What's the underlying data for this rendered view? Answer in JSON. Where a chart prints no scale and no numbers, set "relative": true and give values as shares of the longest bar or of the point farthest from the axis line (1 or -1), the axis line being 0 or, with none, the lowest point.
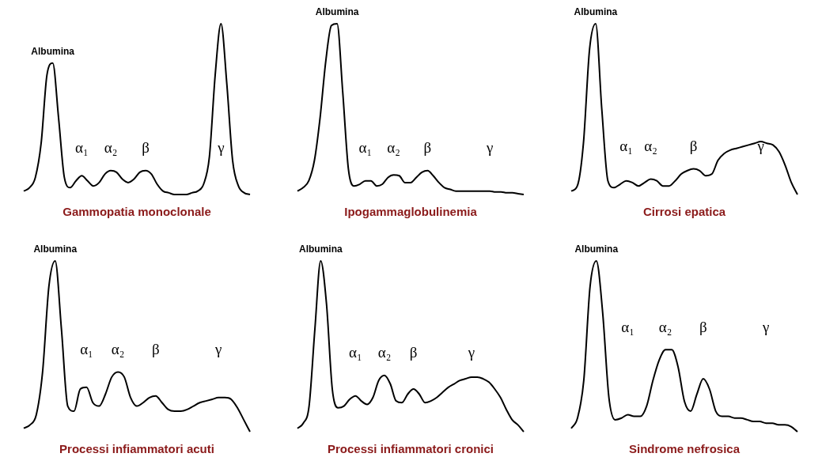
{
  "chart_data": [
    {
      "type": "line",
      "title": "Gammopatia monoclonale",
      "relative": true,
      "color": "#000000",
      "categories": [
        null,
        null,
        null,
        null,
        null,
        null,
        null,
        null,
        null,
        null,
        null,
        null,
        null,
        null,
        null,
        null,
        null,
        null,
        null,
        null,
        null,
        null,
        null,
        null,
        null,
        null,
        null,
        null,
        null,
        null,
        null,
        null,
        null,
        null,
        null,
        null,
        null,
        null,
        null,
        null
      ],
      "values": [
        0.02,
        0.04,
        0.1,
        0.3,
        0.7,
        0.77,
        0.45,
        0.1,
        0.04,
        0.08,
        0.11,
        0.08,
        0.05,
        0.07,
        0.12,
        0.14,
        0.13,
        0.09,
        0.07,
        0.09,
        0.13,
        0.14,
        0.12,
        0.06,
        0.02,
        0.01,
        0,
        0,
        0,
        0.01,
        0.02,
        0.06,
        0.22,
        0.7,
        1,
        0.65,
        0.2,
        0.05,
        0.01,
        0
      ],
      "annotations": [
        "Albumina",
        "α₁",
        "α₂",
        "β",
        "γ"
      ]
    },
    {
      "type": "line",
      "title": "Ipogammaglobulinemia",
      "relative": true,
      "color": "#000000",
      "categories": [
        null,
        null,
        null,
        null,
        null,
        null,
        null,
        null,
        null,
        null,
        null,
        null,
        null,
        null,
        null,
        null,
        null,
        null,
        null,
        null,
        null,
        null,
        null,
        null,
        null,
        null,
        null,
        null,
        null,
        null,
        null,
        null,
        null,
        null,
        null,
        null,
        null,
        null,
        null,
        null,
        null
      ],
      "values": [
        0.02,
        0.04,
        0.08,
        0.2,
        0.45,
        0.78,
        0.99,
        1,
        0.6,
        0.15,
        0.05,
        0.06,
        0.08,
        0.08,
        0.05,
        0.06,
        0.1,
        0.115,
        0.11,
        0.07,
        0.07,
        0.1,
        0.13,
        0.14,
        0.11,
        0.07,
        0.04,
        0.03,
        0.02,
        0.02,
        0.02,
        0.02,
        0.02,
        0.02,
        0.02,
        0.015,
        0.015,
        0.01,
        0.01,
        0.005,
        0
      ],
      "annotations": [
        "Albumina",
        "α₁",
        "α₂",
        "β",
        "γ"
      ]
    },
    {
      "type": "line",
      "title": "Cirrosi epatica",
      "relative": true,
      "color": "#000000",
      "categories": [
        null,
        null,
        null,
        null,
        null,
        null,
        null,
        null,
        null,
        null,
        null,
        null,
        null,
        null,
        null,
        null,
        null,
        null,
        null,
        null,
        null,
        null,
        null,
        null,
        null,
        null,
        null,
        null,
        null,
        null,
        null,
        null,
        null,
        null,
        null,
        null,
        null,
        null
      ],
      "values": [
        0.02,
        0.05,
        0.3,
        0.85,
        1,
        0.5,
        0.08,
        0.04,
        0.06,
        0.08,
        0.07,
        0.05,
        0.07,
        0.09,
        0.08,
        0.05,
        0.05,
        0.08,
        0.12,
        0.14,
        0.15,
        0.14,
        0.11,
        0.12,
        0.2,
        0.24,
        0.26,
        0.27,
        0.28,
        0.29,
        0.3,
        0.31,
        0.3,
        0.29,
        0.25,
        0.17,
        0.07,
        0
      ],
      "annotations": [
        "Albumina",
        "α₁",
        "α₂",
        "β",
        "γ"
      ]
    },
    {
      "type": "line",
      "title": "Processi infiammatori acuti",
      "relative": true,
      "color": "#000000",
      "categories": [
        null,
        null,
        null,
        null,
        null,
        null,
        null,
        null,
        null,
        null,
        null,
        null,
        null,
        null,
        null,
        null,
        null,
        null,
        null,
        null,
        null,
        null,
        null,
        null,
        null,
        null,
        null,
        null,
        null,
        null,
        null,
        null,
        null,
        null,
        null,
        null,
        null
      ],
      "values": [
        0.02,
        0.04,
        0.1,
        0.35,
        0.85,
        1,
        0.6,
        0.15,
        0.12,
        0.25,
        0.26,
        0.17,
        0.15,
        0.22,
        0.32,
        0.35,
        0.32,
        0.2,
        0.15,
        0.17,
        0.2,
        0.21,
        0.17,
        0.13,
        0.12,
        0.12,
        0.13,
        0.15,
        0.17,
        0.18,
        0.19,
        0.2,
        0.2,
        0.19,
        0.14,
        0.07,
        0
      ],
      "annotations": [
        "Albumina",
        "α₁",
        "α₂",
        "β",
        "γ"
      ]
    },
    {
      "type": "line",
      "title": "Processi infiammatori cronici",
      "relative": true,
      "color": "#000000",
      "categories": [
        null,
        null,
        null,
        null,
        null,
        null,
        null,
        null,
        null,
        null,
        null,
        null,
        null,
        null,
        null,
        null,
        null,
        null,
        null,
        null,
        null,
        null,
        null,
        null,
        null,
        null,
        null,
        null,
        null,
        null,
        null,
        null,
        null,
        null,
        null,
        null,
        null,
        null,
        null,
        null
      ],
      "values": [
        0.02,
        0.05,
        0.15,
        0.6,
        1,
        0.75,
        0.25,
        0.14,
        0.15,
        0.19,
        0.21,
        0.18,
        0.16,
        0.2,
        0.3,
        0.33,
        0.28,
        0.18,
        0.17,
        0.22,
        0.25,
        0.22,
        0.17,
        0.18,
        0.2,
        0.23,
        0.26,
        0.28,
        0.3,
        0.31,
        0.32,
        0.32,
        0.31,
        0.29,
        0.25,
        0.2,
        0.13,
        0.07,
        0.04,
        0
      ],
      "annotations": [
        "Albumina",
        "α₁",
        "α₂",
        "β",
        "γ"
      ]
    },
    {
      "type": "line",
      "title": "Sindrome nefrosica",
      "relative": true,
      "color": "#000000",
      "categories": [
        null,
        null,
        null,
        null,
        null,
        null,
        null,
        null,
        null,
        null,
        null,
        null,
        null,
        null,
        null,
        null,
        null,
        null,
        null,
        null,
        null,
        null,
        null,
        null,
        null,
        null,
        null,
        null,
        null,
        null,
        null,
        null,
        null,
        null,
        null,
        null,
        null
      ],
      "values": [
        0.02,
        0.08,
        0.3,
        0.85,
        1,
        0.7,
        0.2,
        0.07,
        0.08,
        0.1,
        0.09,
        0.09,
        0.15,
        0.3,
        0.42,
        0.48,
        0.48,
        0.38,
        0.18,
        0.12,
        0.22,
        0.31,
        0.25,
        0.12,
        0.09,
        0.09,
        0.08,
        0.08,
        0.07,
        0.06,
        0.06,
        0.05,
        0.05,
        0.04,
        0.04,
        0.03,
        0
      ],
      "annotations": [
        "Albumina",
        "α₁",
        "α₂",
        "β",
        "γ"
      ]
    }
  ]
}
